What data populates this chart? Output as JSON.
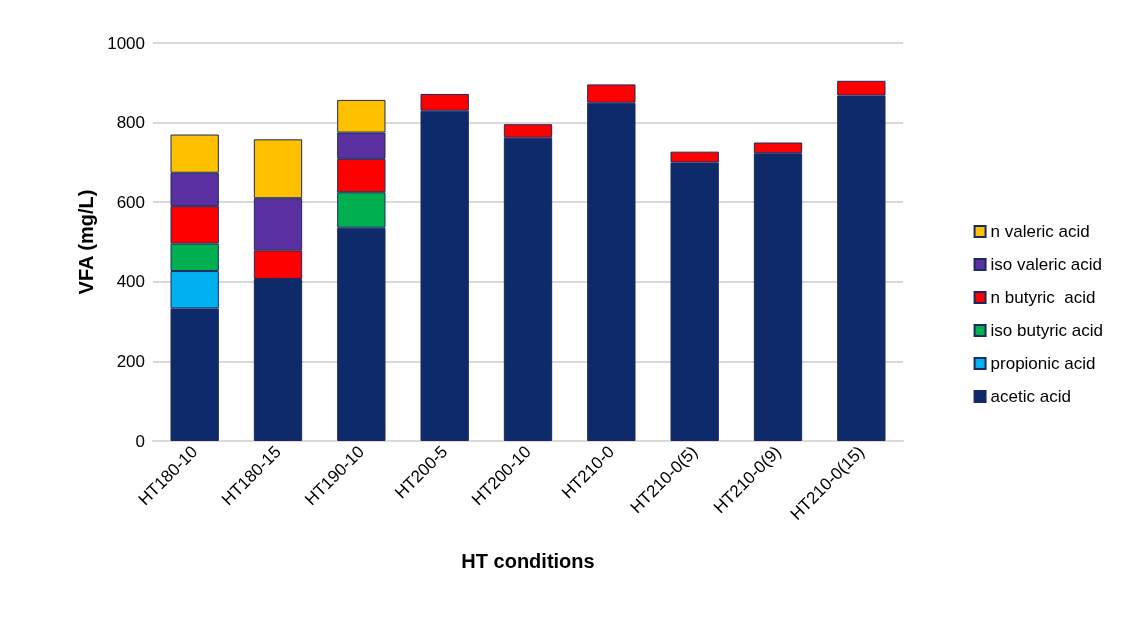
{
  "chart_data": {
    "type": "bar",
    "stacked": true,
    "xlabel": "HT conditions",
    "ylabel": "VFA (mg/L)",
    "categories": [
      "HT180-10",
      "HT180-15",
      "HT190-10",
      "HT200-5",
      "HT200-10",
      "HT210-0",
      "HT210-0(5)",
      "HT210-0(9)",
      "HT210-0(15)"
    ],
    "ylim": [
      0,
      1000
    ],
    "yticks": [
      0,
      200,
      400,
      600,
      800,
      1000
    ],
    "grid": "y",
    "legend": "right",
    "series": [
      {
        "name": "acetic acid",
        "color": "#0e2a6b",
        "values": [
          333,
          407,
          536,
          830,
          762,
          850,
          700,
          723,
          868
        ]
      },
      {
        "name": "propionic acid",
        "color": "#00b0f0",
        "values": [
          94,
          null,
          null,
          null,
          null,
          null,
          null,
          null,
          null
        ]
      },
      {
        "name": "iso butyric acid",
        "color": "#00b050",
        "values": [
          69,
          null,
          89,
          null,
          null,
          null,
          null,
          null,
          null
        ]
      },
      {
        "name": "n butyric  acid",
        "color": "#ff0000",
        "values": [
          94,
          72,
          84,
          42,
          34,
          46,
          27,
          27,
          37
        ]
      },
      {
        "name": "iso valeric acid",
        "color": "#5b30a0",
        "values": [
          84,
          131,
          66,
          null,
          null,
          null,
          null,
          null,
          null
        ]
      },
      {
        "name": "n valeric acid",
        "color": "#ffc000",
        "values": [
          96,
          148,
          82,
          null,
          null,
          null,
          null,
          null,
          null
        ]
      }
    ]
  }
}
